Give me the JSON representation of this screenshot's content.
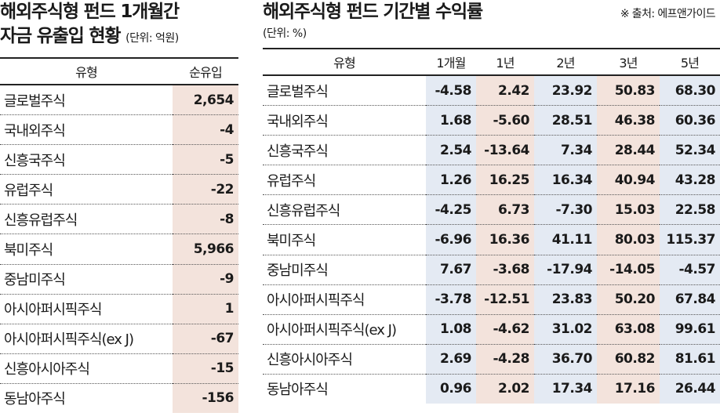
{
  "left": {
    "title_line1": "해외주식형 펀드 1개월간",
    "title_line2": "자금 유출입 현황",
    "unit": "(단위: 억원)",
    "headers": [
      "유형",
      "순유입"
    ],
    "rows": [
      {
        "name": "글로벌주식",
        "value": "2,654"
      },
      {
        "name": "국내외주식",
        "value": "-4"
      },
      {
        "name": "신흥국주식",
        "value": "-5"
      },
      {
        "name": "유럽주식",
        "value": "-22"
      },
      {
        "name": "신흥유럽주식",
        "value": "-8"
      },
      {
        "name": "북미주식",
        "value": "5,966"
      },
      {
        "name": "중남미주식",
        "value": "-9"
      },
      {
        "name": "아시아퍼시픽주식",
        "value": "1"
      },
      {
        "name": "아시아퍼시픽주식(ex J)",
        "value": "-67"
      },
      {
        "name": "신흥아시아주식",
        "value": "-15"
      },
      {
        "name": "동남아주식",
        "value": "-156"
      }
    ]
  },
  "right": {
    "title": "해외주식형 펀드 기간별 수익률",
    "source": "※ 출처: 에프앤가이드",
    "unit": "(단위:  %)",
    "headers": [
      "유형",
      "1개월",
      "1년",
      "2년",
      "3년",
      "5년"
    ],
    "rows": [
      {
        "name": "글로벌주식",
        "values": [
          "-4.58",
          "2.42",
          "23.92",
          "50.83",
          "68.30"
        ]
      },
      {
        "name": "국내외주식",
        "values": [
          "1.68",
          "-5.60",
          "28.51",
          "46.38",
          "60.36"
        ]
      },
      {
        "name": "신흥국주식",
        "values": [
          "2.54",
          "-13.64",
          "7.34",
          "28.44",
          "52.34"
        ]
      },
      {
        "name": "유럽주식",
        "values": [
          "1.26",
          "16.25",
          "16.34",
          "40.94",
          "43.28"
        ]
      },
      {
        "name": "신흥유럽주식",
        "values": [
          "-4.25",
          "6.73",
          "-7.30",
          "15.03",
          "22.58"
        ]
      },
      {
        "name": "북미주식",
        "values": [
          "-6.96",
          "16.36",
          "41.11",
          "80.03",
          "115.37"
        ]
      },
      {
        "name": "중남미주식",
        "values": [
          "7.67",
          "-3.68",
          "-17.94",
          "-14.05",
          "-4.57"
        ]
      },
      {
        "name": "아시아퍼시픽주식",
        "values": [
          "-3.78",
          "-12.51",
          "23.83",
          "50.20",
          "67.84"
        ]
      },
      {
        "name": "아시아퍼시픽주식(ex J)",
        "values": [
          "1.08",
          "-4.62",
          "31.02",
          "63.08",
          "99.61"
        ]
      },
      {
        "name": "신흥아시아주식",
        "values": [
          "2.69",
          "-4.28",
          "36.70",
          "60.82",
          "81.61"
        ]
      },
      {
        "name": "동남아주식",
        "values": [
          "0.96",
          "2.02",
          "17.34",
          "17.16",
          "26.44"
        ]
      }
    ],
    "column_colors": [
      "#e4eaf3",
      "#f3e3dc",
      "#e4eaf3",
      "#f3e3dc",
      "#e4eaf3"
    ]
  }
}
